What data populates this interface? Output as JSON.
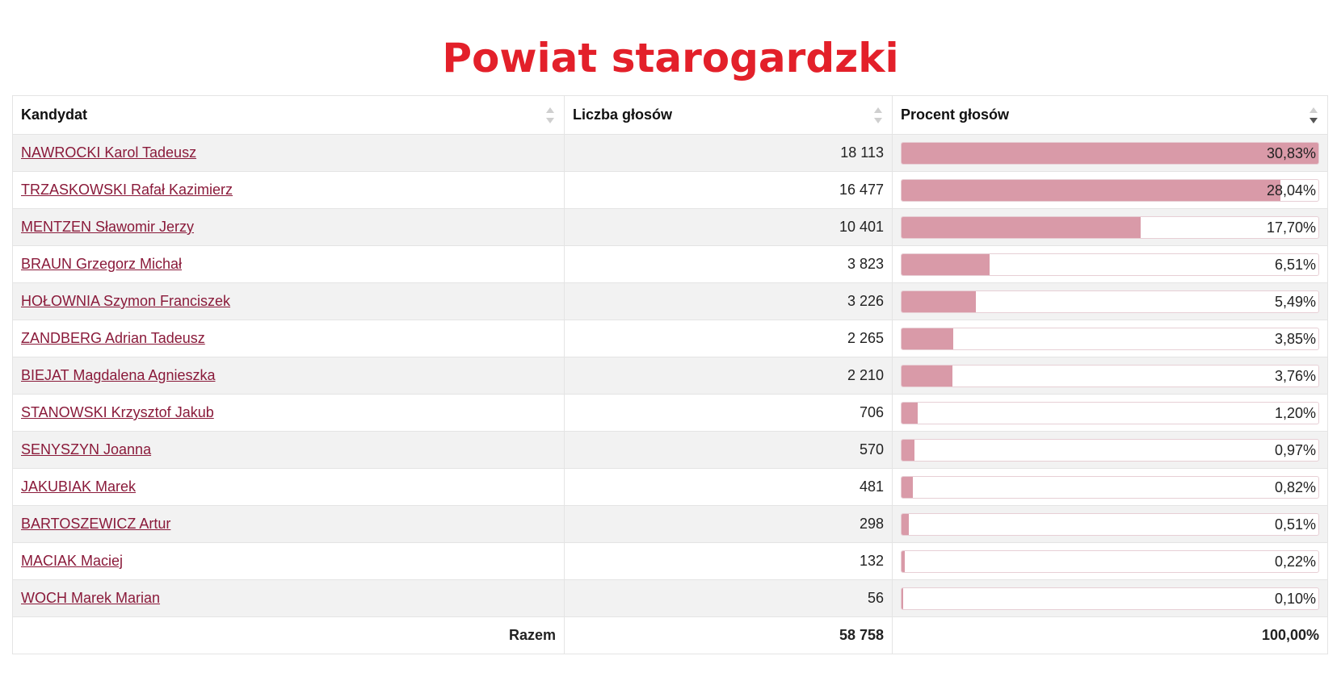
{
  "title": "Powiat starogardzki",
  "table": {
    "headers": [
      "Kandydat",
      "Liczba głosów",
      "Procent głosów"
    ],
    "rows": [
      {
        "name": "NAWROCKI Karol Tadeusz",
        "votes": "18 113",
        "percent": "30,83%",
        "pct_value": 30.83
      },
      {
        "name": "TRZASKOWSKI Rafał Kazimierz",
        "votes": "16 477",
        "percent": "28,04%",
        "pct_value": 28.04
      },
      {
        "name": "MENTZEN Sławomir Jerzy",
        "votes": "10 401",
        "percent": "17,70%",
        "pct_value": 17.7
      },
      {
        "name": "BRAUN Grzegorz Michał",
        "votes": "3 823",
        "percent": "6,51%",
        "pct_value": 6.51
      },
      {
        "name": "HOŁOWNIA Szymon Franciszek",
        "votes": "3 226",
        "percent": "5,49%",
        "pct_value": 5.49
      },
      {
        "name": "ZANDBERG Adrian Tadeusz",
        "votes": "2 265",
        "percent": "3,85%",
        "pct_value": 3.85
      },
      {
        "name": "BIEJAT Magdalena Agnieszka",
        "votes": "2 210",
        "percent": "3,76%",
        "pct_value": 3.76
      },
      {
        "name": "STANOWSKI Krzysztof Jakub",
        "votes": "706",
        "percent": "1,20%",
        "pct_value": 1.2
      },
      {
        "name": "SENYSZYN Joanna",
        "votes": "570",
        "percent": "0,97%",
        "pct_value": 0.97
      },
      {
        "name": "JAKUBIAK Marek",
        "votes": "481",
        "percent": "0,82%",
        "pct_value": 0.82
      },
      {
        "name": "BARTOSZEWICZ Artur",
        "votes": "298",
        "percent": "0,51%",
        "pct_value": 0.51
      },
      {
        "name": "MACIAK Maciej",
        "votes": "132",
        "percent": "0,22%",
        "pct_value": 0.22
      },
      {
        "name": "WOCH Marek Marian",
        "votes": "56",
        "percent": "0,10%",
        "pct_value": 0.1
      }
    ],
    "bar_max_value": 30.83,
    "footer": {
      "label": "Razem",
      "votes": "58 758",
      "percent": "100,00%"
    }
  },
  "colors": {
    "title": "#e3202a",
    "link": "#8a1a3a",
    "bar_fill": "#d99aa8"
  }
}
